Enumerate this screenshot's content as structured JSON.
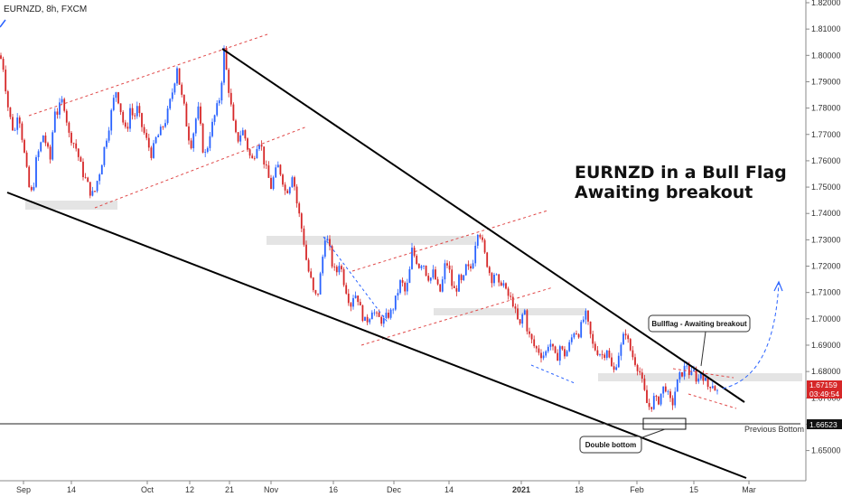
{
  "header": {
    "symbol_line": "EURNZD, 8h, FXCM"
  },
  "annotations": {
    "headline_1": "EURNZD in a Bull Flag",
    "headline_2": "Awaiting breakout",
    "bullflag_label": "Bullflag - Awaiting breakout",
    "double_bottom_label": "Double bottom",
    "previous_bottom_label": "Previous Bottom"
  },
  "price_tags": {
    "current_price": "1.67159",
    "countdown": "03:49:54",
    "previous_bottom_price": "1.66523"
  },
  "colors": {
    "up": "#2962ff",
    "down": "#d62728",
    "channel": "#e04848",
    "wedge": "#000000",
    "zone": "#e2e2e2",
    "arrow": "#2962ff"
  },
  "chart_data": {
    "type": "candlestick",
    "symbol": "EURNZD",
    "timeframe": "8h",
    "source": "FXCM",
    "ylim": [
      1.643,
      1.82
    ],
    "y_ticks": [
      "1.82000",
      "1.81000",
      "1.80000",
      "1.79000",
      "1.78000",
      "1.77000",
      "1.76000",
      "1.75000",
      "1.74000",
      "1.73000",
      "1.72000",
      "1.71000",
      "1.70000",
      "1.69000",
      "1.68000",
      "1.67000",
      "1.66000",
      "1.65000"
    ],
    "x_ticks": [
      "Sep",
      "14",
      "Oct",
      "12",
      "21",
      "Nov",
      "16",
      "Dec",
      "14",
      "2021",
      "18",
      "Feb",
      "15",
      "Mar"
    ],
    "price_path": [
      [
        0,
        1.8
      ],
      [
        4,
        1.795
      ],
      [
        8,
        1.782
      ],
      [
        12,
        1.775
      ],
      [
        16,
        1.77
      ],
      [
        20,
        1.78
      ],
      [
        24,
        1.77
      ],
      [
        28,
        1.76
      ],
      [
        32,
        1.75
      ],
      [
        36,
        1.747
      ],
      [
        40,
        1.76
      ],
      [
        44,
        1.765
      ],
      [
        48,
        1.77
      ],
      [
        52,
        1.765
      ],
      [
        56,
        1.76
      ],
      [
        60,
        1.78
      ],
      [
        64,
        1.778
      ],
      [
        68,
        1.783
      ],
      [
        72,
        1.78
      ],
      [
        76,
        1.77
      ],
      [
        80,
        1.768
      ],
      [
        84,
        1.765
      ],
      [
        88,
        1.76
      ],
      [
        92,
        1.755
      ],
      [
        96,
        1.752
      ],
      [
        100,
        1.748
      ],
      [
        104,
        1.747
      ],
      [
        108,
        1.753
      ],
      [
        112,
        1.758
      ],
      [
        116,
        1.766
      ],
      [
        120,
        1.772
      ],
      [
        124,
        1.78
      ],
      [
        128,
        1.787
      ],
      [
        132,
        1.782
      ],
      [
        136,
        1.775
      ],
      [
        140,
        1.77
      ],
      [
        144,
        1.78
      ],
      [
        148,
        1.776
      ],
      [
        152,
        1.78
      ],
      [
        156,
        1.774
      ],
      [
        160,
        1.77
      ],
      [
        164,
        1.766
      ],
      [
        168,
        1.762
      ],
      [
        172,
        1.768
      ],
      [
        176,
        1.77
      ],
      [
        180,
        1.773
      ],
      [
        184,
        1.776
      ],
      [
        188,
        1.782
      ],
      [
        192,
        1.788
      ],
      [
        196,
        1.796
      ],
      [
        200,
        1.786
      ],
      [
        204,
        1.78
      ],
      [
        208,
        1.77
      ],
      [
        212,
        1.766
      ],
      [
        216,
        1.775
      ],
      [
        220,
        1.78
      ],
      [
        224,
        1.765
      ],
      [
        228,
        1.762
      ],
      [
        232,
        1.77
      ],
      [
        236,
        1.775
      ],
      [
        240,
        1.78
      ],
      [
        244,
        1.785
      ],
      [
        248,
        1.802
      ],
      [
        252,
        1.79
      ],
      [
        256,
        1.78
      ],
      [
        260,
        1.77
      ],
      [
        264,
        1.768
      ],
      [
        268,
        1.772
      ],
      [
        272,
        1.768
      ],
      [
        276,
        1.762
      ],
      [
        280,
        1.76
      ],
      [
        284,
        1.766
      ],
      [
        288,
        1.768
      ],
      [
        292,
        1.76
      ],
      [
        296,
        1.755
      ],
      [
        300,
        1.75
      ],
      [
        304,
        1.755
      ],
      [
        308,
        1.758
      ],
      [
        312,
        1.754
      ],
      [
        316,
        1.748
      ],
      [
        320,
        1.75
      ],
      [
        324,
        1.756
      ],
      [
        328,
        1.745
      ],
      [
        332,
        1.738
      ],
      [
        336,
        1.73
      ],
      [
        340,
        1.72
      ],
      [
        344,
        1.715
      ],
      [
        348,
        1.708
      ],
      [
        352,
        1.71
      ],
      [
        356,
        1.72
      ],
      [
        360,
        1.732
      ],
      [
        364,
        1.728
      ],
      [
        368,
        1.72
      ],
      [
        372,
        1.717
      ],
      [
        376,
        1.722
      ],
      [
        380,
        1.715
      ],
      [
        384,
        1.71
      ],
      [
        388,
        1.705
      ],
      [
        392,
        1.71
      ],
      [
        396,
        1.708
      ],
      [
        400,
        1.702
      ],
      [
        404,
        1.699
      ],
      [
        408,
        1.7
      ],
      [
        412,
        1.704
      ],
      [
        416,
        1.701
      ],
      [
        420,
        1.7
      ],
      [
        424,
        1.699
      ],
      [
        428,
        1.701
      ],
      [
        432,
        1.702
      ],
      [
        436,
        1.705
      ],
      [
        440,
        1.71
      ],
      [
        444,
        1.715
      ],
      [
        448,
        1.71
      ],
      [
        452,
        1.714
      ],
      [
        456,
        1.726
      ],
      [
        460,
        1.723
      ],
      [
        464,
        1.72
      ],
      [
        468,
        1.722
      ],
      [
        472,
        1.717
      ],
      [
        476,
        1.715
      ],
      [
        480,
        1.718
      ],
      [
        484,
        1.712
      ],
      [
        488,
        1.71
      ],
      [
        492,
        1.72
      ],
      [
        496,
        1.721
      ],
      [
        500,
        1.713
      ],
      [
        504,
        1.71
      ],
      [
        508,
        1.715
      ],
      [
        512,
        1.713
      ],
      [
        516,
        1.72
      ],
      [
        520,
        1.718
      ],
      [
        524,
        1.723
      ],
      [
        528,
        1.734
      ],
      [
        532,
        1.732
      ],
      [
        536,
        1.725
      ],
      [
        540,
        1.72
      ],
      [
        544,
        1.715
      ],
      [
        548,
        1.718
      ],
      [
        552,
        1.712
      ],
      [
        556,
        1.715
      ],
      [
        560,
        1.71
      ],
      [
        564,
        1.708
      ],
      [
        568,
        1.706
      ],
      [
        572,
        1.7
      ],
      [
        576,
        1.697
      ],
      [
        580,
        1.705
      ],
      [
        584,
        1.695
      ],
      [
        588,
        1.692
      ],
      [
        592,
        1.689
      ],
      [
        596,
        1.688
      ],
      [
        600,
        1.686
      ],
      [
        604,
        1.687
      ],
      [
        608,
        1.692
      ],
      [
        612,
        1.688
      ],
      [
        616,
        1.684
      ],
      [
        620,
        1.69
      ],
      [
        624,
        1.686
      ],
      [
        628,
        1.688
      ],
      [
        632,
        1.692
      ],
      [
        636,
        1.696
      ],
      [
        640,
        1.694
      ],
      [
        644,
        1.698
      ],
      [
        648,
        1.702
      ],
      [
        652,
        1.696
      ],
      [
        656,
        1.69
      ],
      [
        660,
        1.688
      ],
      [
        664,
        1.687
      ],
      [
        668,
        1.686
      ],
      [
        672,
        1.689
      ],
      [
        676,
        1.682
      ],
      [
        680,
        1.68
      ],
      [
        684,
        1.686
      ],
      [
        688,
        1.69
      ],
      [
        692,
        1.696
      ],
      [
        696,
        1.69
      ],
      [
        700,
        1.686
      ],
      [
        704,
        1.683
      ],
      [
        708,
        1.68
      ],
      [
        712,
        1.674
      ],
      [
        716,
        1.668
      ],
      [
        720,
        1.666
      ],
      [
        724,
        1.67
      ],
      [
        728,
        1.668
      ],
      [
        732,
        1.672
      ],
      [
        736,
        1.675
      ],
      [
        740,
        1.67
      ],
      [
        744,
        1.667
      ],
      [
        748,
        1.674
      ],
      [
        752,
        1.678
      ],
      [
        756,
        1.68
      ],
      [
        760,
        1.683
      ],
      [
        764,
        1.678
      ],
      [
        768,
        1.68
      ],
      [
        772,
        1.676
      ],
      [
        776,
        1.68
      ],
      [
        780,
        1.677
      ],
      [
        784,
        1.674
      ],
      [
        788,
        1.676
      ],
      [
        792,
        1.673
      ],
      [
        796,
        1.6716
      ]
    ],
    "levels": [
      {
        "name": "Previous Bottom",
        "value": 1.66523
      }
    ]
  }
}
